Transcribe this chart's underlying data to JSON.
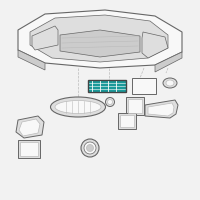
{
  "bg_color": "#f2f2f2",
  "highlight_color": "#1a9999",
  "line_color": "#666666",
  "dark_line": "#444444",
  "light_gray": "#bbbbbb",
  "mid_gray": "#999999",
  "fill_light": "#dedede",
  "fill_white": "#f8f8f8",
  "fill_mid": "#cccccc"
}
